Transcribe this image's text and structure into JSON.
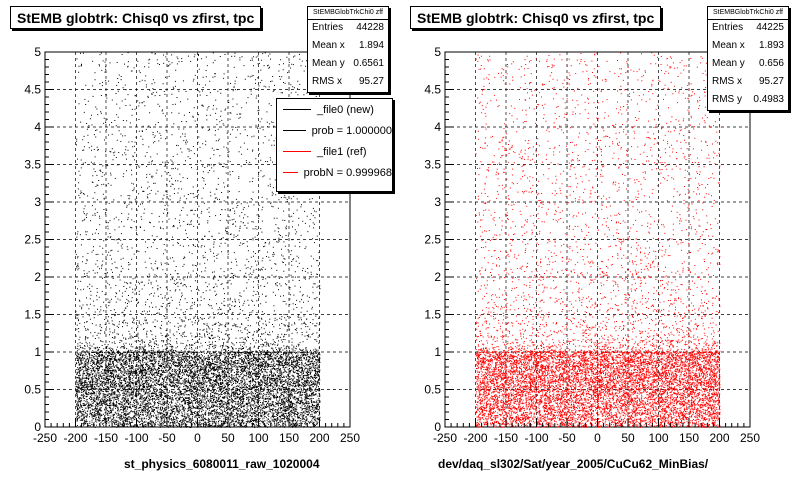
{
  "chart_data": [
    {
      "type": "scatter",
      "title": "StEMB globtrk: Chisq0 vs zfirst, tpc",
      "xlabel": "st_physics_6080011_raw_1020004",
      "xlim": [
        -250,
        250
      ],
      "ylim": [
        0,
        5
      ],
      "xticks": [
        "-250",
        "-200",
        "-150",
        "-100",
        "-50",
        "0",
        "50",
        "100",
        "150",
        "200",
        "250"
      ],
      "yticks": [
        "0",
        "0.5",
        "1",
        "1.5",
        "2",
        "2.5",
        "3",
        "3.5",
        "4",
        "4.5",
        "5"
      ],
      "grid": true,
      "marker_color": "#000000",
      "stats": {
        "name": "StEMBGlobTrkChi0 zff",
        "rows": [
          {
            "label": "Entries",
            "value": "44228"
          },
          {
            "label": "Mean x",
            "value": "1.894"
          },
          {
            "label": "Mean y",
            "value": "0.6561"
          },
          {
            "label": "RMS x",
            "value": "95.27"
          }
        ]
      },
      "legend": {
        "placement": "top-right",
        "entries": [
          {
            "label": "_file0 (new)",
            "color": "#000000"
          },
          {
            "label": "prob = 1.000000",
            "color": "#000000"
          },
          {
            "label": "_file1 (ref)",
            "color": "#ff0000"
          },
          {
            "label": "probN = 0.999968",
            "color": "#ff0000"
          }
        ]
      },
      "distribution": {
        "x_range": [
          -200,
          200
        ],
        "dense_band": {
          "y_range": [
            0,
            1.0
          ]
        },
        "sparse_y_max": 5
      }
    },
    {
      "type": "scatter",
      "title": "StEMB globtrk: Chisq0 vs zfirst, tpc",
      "xlabel": "dev/daq_sl302/Sat/year_2005/CuCu62_MinBias/",
      "xlim": [
        -250,
        250
      ],
      "ylim": [
        0,
        5
      ],
      "xticks": [
        "-250",
        "-200",
        "-150",
        "-100",
        "-50",
        "0",
        "50",
        "100",
        "150",
        "200",
        "250"
      ],
      "yticks": [
        "0",
        "0.5",
        "1",
        "1.5",
        "2",
        "2.5",
        "3",
        "3.5",
        "4",
        "4.5",
        "5"
      ],
      "grid": true,
      "marker_color": "#ff0000",
      "stats": {
        "name": "StEMBGlobTrkChi0 zff",
        "rows": [
          {
            "label": "Entries",
            "value": "44225"
          },
          {
            "label": "Mean x",
            "value": "1.893"
          },
          {
            "label": "Mean y",
            "value": "0.656"
          },
          {
            "label": "RMS x",
            "value": "95.27"
          },
          {
            "label": "RMS y",
            "value": "0.4983"
          }
        ]
      },
      "distribution": {
        "x_range": [
          -200,
          200
        ],
        "dense_band": {
          "y_range": [
            0,
            1.0
          ]
        },
        "sparse_y_max": 5
      }
    }
  ]
}
